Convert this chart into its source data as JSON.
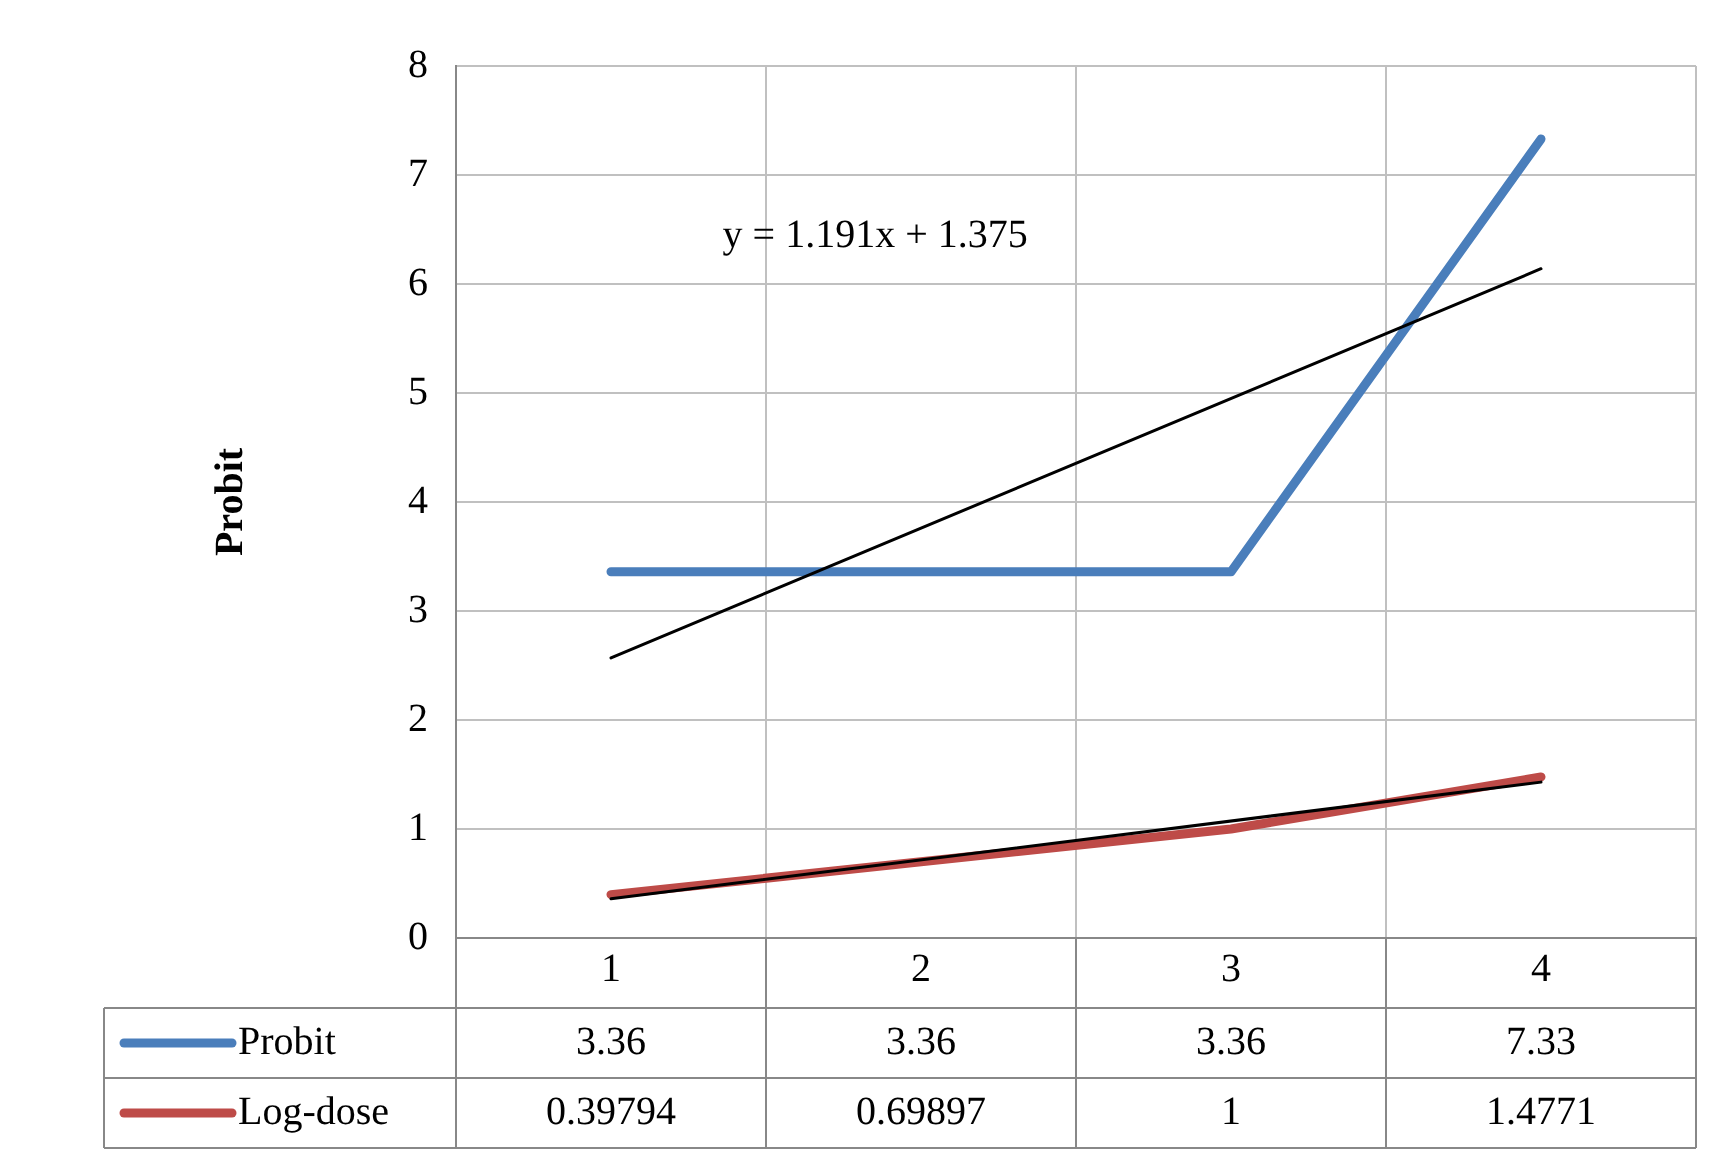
{
  "chart_data": {
    "type": "line",
    "ylabel": "Probit",
    "categories": [
      "1",
      "2",
      "3",
      "4"
    ],
    "series": [
      {
        "name": "Probit",
        "color": "#4a7ebb",
        "values": [
          3.36,
          3.36,
          3.36,
          7.33
        ],
        "value_labels": [
          "3.36",
          "3.36",
          "3.36",
          "7.33"
        ]
      },
      {
        "name": "Log-dose",
        "color": "#be4b48",
        "values": [
          0.39794,
          0.69897,
          1,
          1.4771
        ],
        "value_labels": [
          "0.39794",
          "0.69897",
          "1",
          "1.4771"
        ]
      },
      {
        "type": "line",
        "color": "#000000",
        "x": [
          "1",
          "4"
        ],
        "values": [
          2.57,
          6.14
        ]
      },
      {
        "type": "line",
        "color": "#000000",
        "x": [
          "1",
          "4"
        ],
        "values": [
          0.36,
          1.43
        ]
      }
    ],
    "ylim": [
      0,
      8
    ],
    "yticks": [
      0,
      1,
      2,
      3,
      4,
      5,
      6,
      7,
      8
    ],
    "grid": true,
    "legend": "bottom",
    "marker": "none",
    "annotations": [
      "y = 1.191x + 1.375"
    ]
  }
}
